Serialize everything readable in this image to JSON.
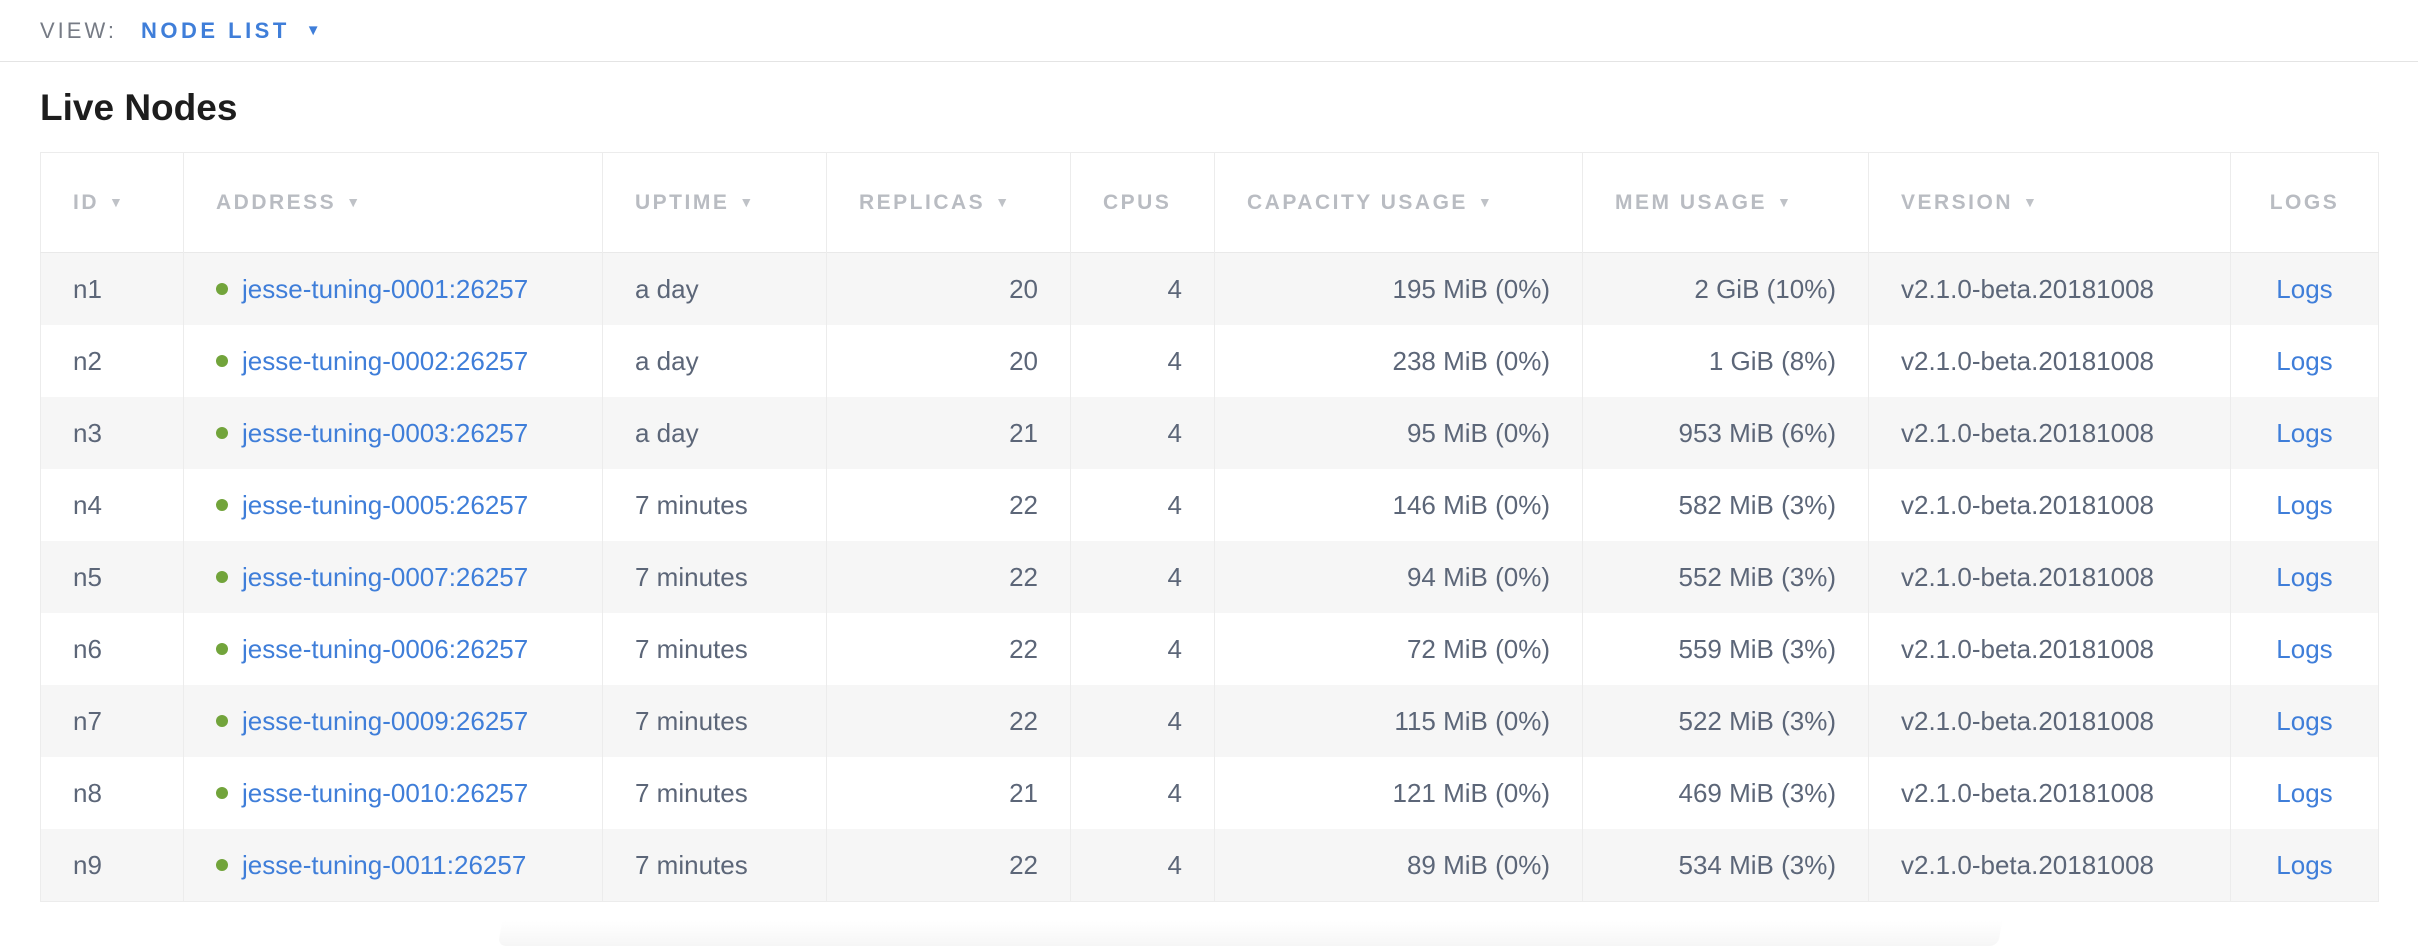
{
  "view_bar": {
    "label": "VIEW:",
    "selected": "NODE LIST"
  },
  "page": {
    "title": "Live Nodes"
  },
  "colors": {
    "link": "#3f7ed9",
    "status_green": "#72a43b"
  },
  "table": {
    "columns": [
      {
        "key": "id",
        "label": "ID",
        "sortable": true,
        "align": "left"
      },
      {
        "key": "address",
        "label": "ADDRESS",
        "sortable": true,
        "align": "left"
      },
      {
        "key": "uptime",
        "label": "UPTIME",
        "sortable": true,
        "align": "left"
      },
      {
        "key": "replicas",
        "label": "REPLICAS",
        "sortable": true,
        "align": "right"
      },
      {
        "key": "cpus",
        "label": "CPUS",
        "sortable": false,
        "align": "right"
      },
      {
        "key": "capacity",
        "label": "CAPACITY USAGE",
        "sortable": true,
        "align": "right"
      },
      {
        "key": "mem",
        "label": "MEM USAGE",
        "sortable": true,
        "align": "right"
      },
      {
        "key": "version",
        "label": "VERSION",
        "sortable": true,
        "align": "left"
      },
      {
        "key": "logs",
        "label": "LOGS",
        "sortable": false,
        "align": "center"
      }
    ],
    "rows": [
      {
        "id": "n1",
        "address": "jesse-tuning-0001:26257",
        "uptime": "a day",
        "replicas": "20",
        "cpus": "4",
        "capacity": "195 MiB (0%)",
        "mem": "2 GiB (10%)",
        "version": "v2.1.0-beta.20181008",
        "logs": "Logs"
      },
      {
        "id": "n2",
        "address": "jesse-tuning-0002:26257",
        "uptime": "a day",
        "replicas": "20",
        "cpus": "4",
        "capacity": "238 MiB (0%)",
        "mem": "1 GiB (8%)",
        "version": "v2.1.0-beta.20181008",
        "logs": "Logs"
      },
      {
        "id": "n3",
        "address": "jesse-tuning-0003:26257",
        "uptime": "a day",
        "replicas": "21",
        "cpus": "4",
        "capacity": "95 MiB (0%)",
        "mem": "953 MiB (6%)",
        "version": "v2.1.0-beta.20181008",
        "logs": "Logs"
      },
      {
        "id": "n4",
        "address": "jesse-tuning-0005:26257",
        "uptime": "7 minutes",
        "replicas": "22",
        "cpus": "4",
        "capacity": "146 MiB (0%)",
        "mem": "582 MiB (3%)",
        "version": "v2.1.0-beta.20181008",
        "logs": "Logs"
      },
      {
        "id": "n5",
        "address": "jesse-tuning-0007:26257",
        "uptime": "7 minutes",
        "replicas": "22",
        "cpus": "4",
        "capacity": "94 MiB (0%)",
        "mem": "552 MiB (3%)",
        "version": "v2.1.0-beta.20181008",
        "logs": "Logs"
      },
      {
        "id": "n6",
        "address": "jesse-tuning-0006:26257",
        "uptime": "7 minutes",
        "replicas": "22",
        "cpus": "4",
        "capacity": "72 MiB (0%)",
        "mem": "559 MiB (3%)",
        "version": "v2.1.0-beta.20181008",
        "logs": "Logs"
      },
      {
        "id": "n7",
        "address": "jesse-tuning-0009:26257",
        "uptime": "7 minutes",
        "replicas": "22",
        "cpus": "4",
        "capacity": "115 MiB (0%)",
        "mem": "522 MiB (3%)",
        "version": "v2.1.0-beta.20181008",
        "logs": "Logs"
      },
      {
        "id": "n8",
        "address": "jesse-tuning-0010:26257",
        "uptime": "7 minutes",
        "replicas": "21",
        "cpus": "4",
        "capacity": "121 MiB (0%)",
        "mem": "469 MiB (3%)",
        "version": "v2.1.0-beta.20181008",
        "logs": "Logs"
      },
      {
        "id": "n9",
        "address": "jesse-tuning-0011:26257",
        "uptime": "7 minutes",
        "replicas": "22",
        "cpus": "4",
        "capacity": "89 MiB (0%)",
        "mem": "534 MiB (3%)",
        "version": "v2.1.0-beta.20181008",
        "logs": "Logs"
      }
    ],
    "icons": {
      "sort_desc": "▼",
      "dropdown_caret": "▼",
      "node_live_dot": "status-live-icon"
    }
  }
}
